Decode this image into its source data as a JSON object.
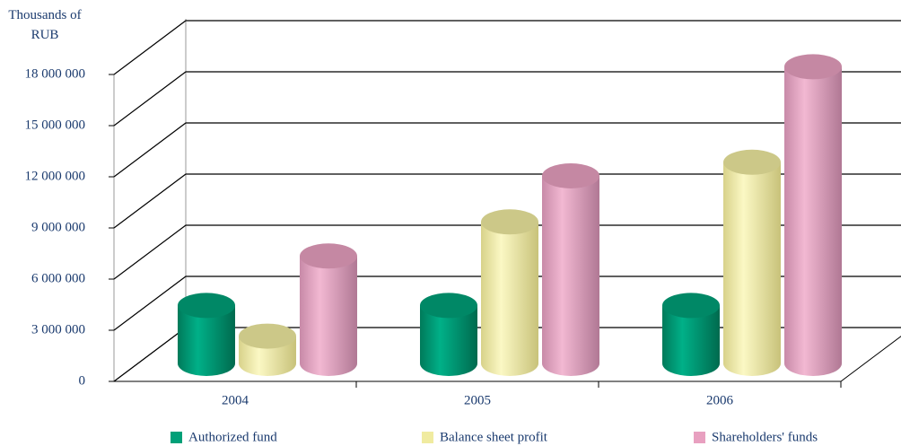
{
  "chart_data": {
    "type": "bar3d",
    "y_axis_label": "Thousands of RUB",
    "categories": [
      "2004",
      "2005",
      "2006"
    ],
    "series": [
      {
        "name": "Authorized fund",
        "color": "#00a078",
        "values": [
          3400000,
          3400000,
          3400000
        ]
      },
      {
        "name": "Balance sheet profit",
        "color": "#f0eba0",
        "values": [
          1600000,
          8300000,
          11800000
        ]
      },
      {
        "name": "Shareholders' funds",
        "color": "#e8a0c0",
        "values": [
          6300000,
          11000000,
          17400000
        ]
      }
    ],
    "ylim": [
      0,
      18000000
    ],
    "yticks": [
      0,
      {
        "value": 3000000,
        "label": "3 000 000"
      },
      {
        "value": 6000000,
        "label": "6 000 000"
      },
      {
        "value": 9000000,
        "label": "9 000 000"
      },
      {
        "value": 12000000,
        "label": "12 000 000"
      },
      {
        "value": 15000000,
        "label": "15 000 000"
      },
      {
        "value": 18000000,
        "label": "18 000 000"
      }
    ],
    "grid": true,
    "legend": "bottom"
  }
}
